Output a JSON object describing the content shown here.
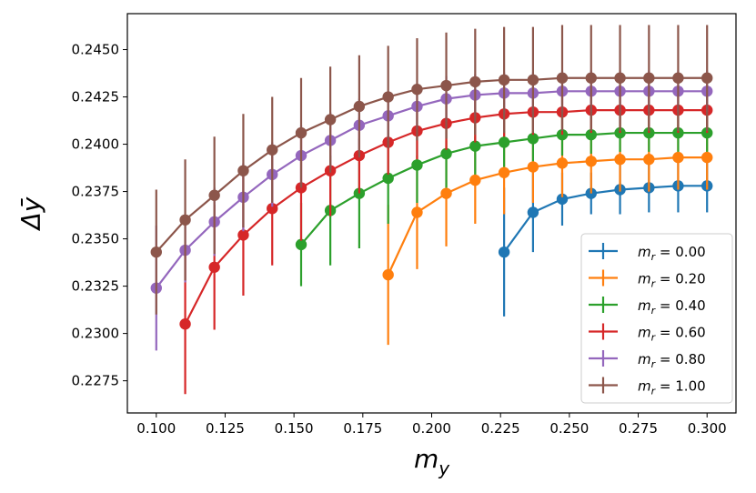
{
  "chart_data": {
    "type": "line",
    "title": "",
    "xlabel": "m_y",
    "ylabel": "Δȳ",
    "xlim": [
      0.0895,
      0.3105
    ],
    "ylim": [
      0.2258,
      0.2469
    ],
    "x_ticks": [
      "0.100",
      "0.125",
      "0.150",
      "0.175",
      "0.200",
      "0.225",
      "0.250",
      "0.275",
      "0.300"
    ],
    "x_tick_values": [
      0.1,
      0.125,
      0.15,
      0.175,
      0.2,
      0.225,
      0.25,
      0.275,
      0.3
    ],
    "y_ticks": [
      "0.2275",
      "0.2300",
      "0.2325",
      "0.2350",
      "0.2375",
      "0.2400",
      "0.2425",
      "0.2450"
    ],
    "y_tick_values": [
      0.2275,
      0.23,
      0.2325,
      0.235,
      0.2375,
      0.24,
      0.2425,
      0.245
    ],
    "legend_position": "bottom-right",
    "series": [
      {
        "name": "m_r = 0.00",
        "label_prefix": "m",
        "label_sub": "r",
        "label_value": " = 0.00",
        "color": "#1f77b4",
        "x": [
          0.2263,
          0.2368,
          0.2474,
          0.2579,
          0.2684,
          0.2789,
          0.2895,
          0.3
        ],
        "y": [
          0.2343,
          0.2364,
          0.2371,
          0.2374,
          0.2376,
          0.2377,
          0.2378,
          0.2378
        ],
        "err": [
          0.0034,
          0.0021,
          0.0014,
          0.0011,
          0.0013,
          0.0013,
          0.0014,
          0.0014
        ]
      },
      {
        "name": "m_r = 0.20",
        "label_prefix": "m",
        "label_sub": "r",
        "label_value": " = 0.20",
        "color": "#ff7f0e",
        "x": [
          0.1842,
          0.1947,
          0.2053,
          0.2158,
          0.2263,
          0.2368,
          0.2474,
          0.2579,
          0.2684,
          0.2789,
          0.2895,
          0.3
        ],
        "y": [
          0.2331,
          0.2364,
          0.2374,
          0.2381,
          0.2385,
          0.2388,
          0.239,
          0.2391,
          0.2392,
          0.2392,
          0.2393,
          0.2393
        ],
        "err": [
          0.0037,
          0.003,
          0.0028,
          0.0023,
          0.0022,
          0.0019,
          0.0018,
          0.0017,
          0.0017,
          0.0017,
          0.0017,
          0.0017
        ]
      },
      {
        "name": "m_r = 0.40",
        "label_prefix": "m",
        "label_sub": "r",
        "label_value": " = 0.40",
        "color": "#2ca02c",
        "x": [
          0.1526,
          0.1632,
          0.1737,
          0.1842,
          0.1947,
          0.2053,
          0.2158,
          0.2263,
          0.2368,
          0.2474,
          0.2579,
          0.2684,
          0.2789,
          0.2895,
          0.3
        ],
        "y": [
          0.2347,
          0.2365,
          0.2374,
          0.2382,
          0.2389,
          0.2395,
          0.2399,
          0.2401,
          0.2403,
          0.2405,
          0.2405,
          0.2406,
          0.2406,
          0.2406,
          0.2406
        ],
        "err": [
          0.0022,
          0.0029,
          0.0029,
          0.0024,
          0.002,
          0.0018,
          0.0015,
          0.0013,
          0.0012,
          0.0011,
          0.001,
          0.001,
          0.001,
          0.001,
          0.001
        ]
      },
      {
        "name": "m_r = 0.60",
        "label_prefix": "m",
        "label_sub": "r",
        "label_value": " = 0.60",
        "color": "#d62728",
        "x": [
          0.1105,
          0.1211,
          0.1316,
          0.1421,
          0.1526,
          0.1632,
          0.1737,
          0.1842,
          0.1947,
          0.2053,
          0.2158,
          0.2263,
          0.2368,
          0.2474,
          0.2579,
          0.2684,
          0.2789,
          0.2895,
          0.3
        ],
        "y": [
          0.2305,
          0.2335,
          0.2352,
          0.2366,
          0.2377,
          0.2386,
          0.2394,
          0.2401,
          0.2407,
          0.2411,
          0.2414,
          0.2416,
          0.2417,
          0.2417,
          0.2418,
          0.2418,
          0.2418,
          0.2418,
          0.2418
        ],
        "err": [
          0.0037,
          0.0033,
          0.0032,
          0.003,
          0.0028,
          0.0024,
          0.002,
          0.0017,
          0.0015,
          0.0014,
          0.0013,
          0.0012,
          0.0012,
          0.0012,
          0.0012,
          0.0012,
          0.0012,
          0.0012,
          0.0012
        ]
      },
      {
        "name": "m_r = 0.80",
        "label_prefix": "m",
        "label_sub": "r",
        "label_value": " = 0.80",
        "color": "#9467bd",
        "x": [
          0.1,
          0.1105,
          0.1211,
          0.1316,
          0.1421,
          0.1526,
          0.1632,
          0.1737,
          0.1842,
          0.1947,
          0.2053,
          0.2158,
          0.2263,
          0.2368,
          0.2474,
          0.2579,
          0.2684,
          0.2789,
          0.2895,
          0.3
        ],
        "y": [
          0.2324,
          0.2344,
          0.2359,
          0.2372,
          0.2384,
          0.2394,
          0.2402,
          0.241,
          0.2415,
          0.242,
          0.2424,
          0.2426,
          0.2427,
          0.2427,
          0.2428,
          0.2428,
          0.2428,
          0.2428,
          0.2428,
          0.2428
        ],
        "err": [
          0.0033,
          0.0017,
          0.0018,
          0.0018,
          0.0017,
          0.0016,
          0.0015,
          0.0014,
          0.0013,
          0.0012,
          0.0012,
          0.0011,
          0.0011,
          0.0011,
          0.0011,
          0.0011,
          0.0011,
          0.0011,
          0.0011,
          0.0011
        ]
      },
      {
        "name": "m_r = 1.00",
        "label_prefix": "m",
        "label_sub": "r",
        "label_value": " = 1.00",
        "color": "#8c564b",
        "x": [
          0.1,
          0.1105,
          0.1211,
          0.1316,
          0.1421,
          0.1526,
          0.1632,
          0.1737,
          0.1842,
          0.1947,
          0.2053,
          0.2158,
          0.2263,
          0.2368,
          0.2474,
          0.2579,
          0.2684,
          0.2789,
          0.2895,
          0.3
        ],
        "y": [
          0.2343,
          0.236,
          0.2373,
          0.2386,
          0.2397,
          0.2406,
          0.2413,
          0.242,
          0.2425,
          0.2429,
          0.2431,
          0.2433,
          0.2434,
          0.2434,
          0.2435,
          0.2435,
          0.2435,
          0.2435,
          0.2435,
          0.2435
        ],
        "err": [
          0.0033,
          0.0032,
          0.0031,
          0.003,
          0.0028,
          0.0029,
          0.0028,
          0.0027,
          0.0027,
          0.0027,
          0.0028,
          0.0028,
          0.0028,
          0.0028,
          0.0028,
          0.0028,
          0.0028,
          0.0028,
          0.0028,
          0.0028
        ]
      }
    ]
  }
}
